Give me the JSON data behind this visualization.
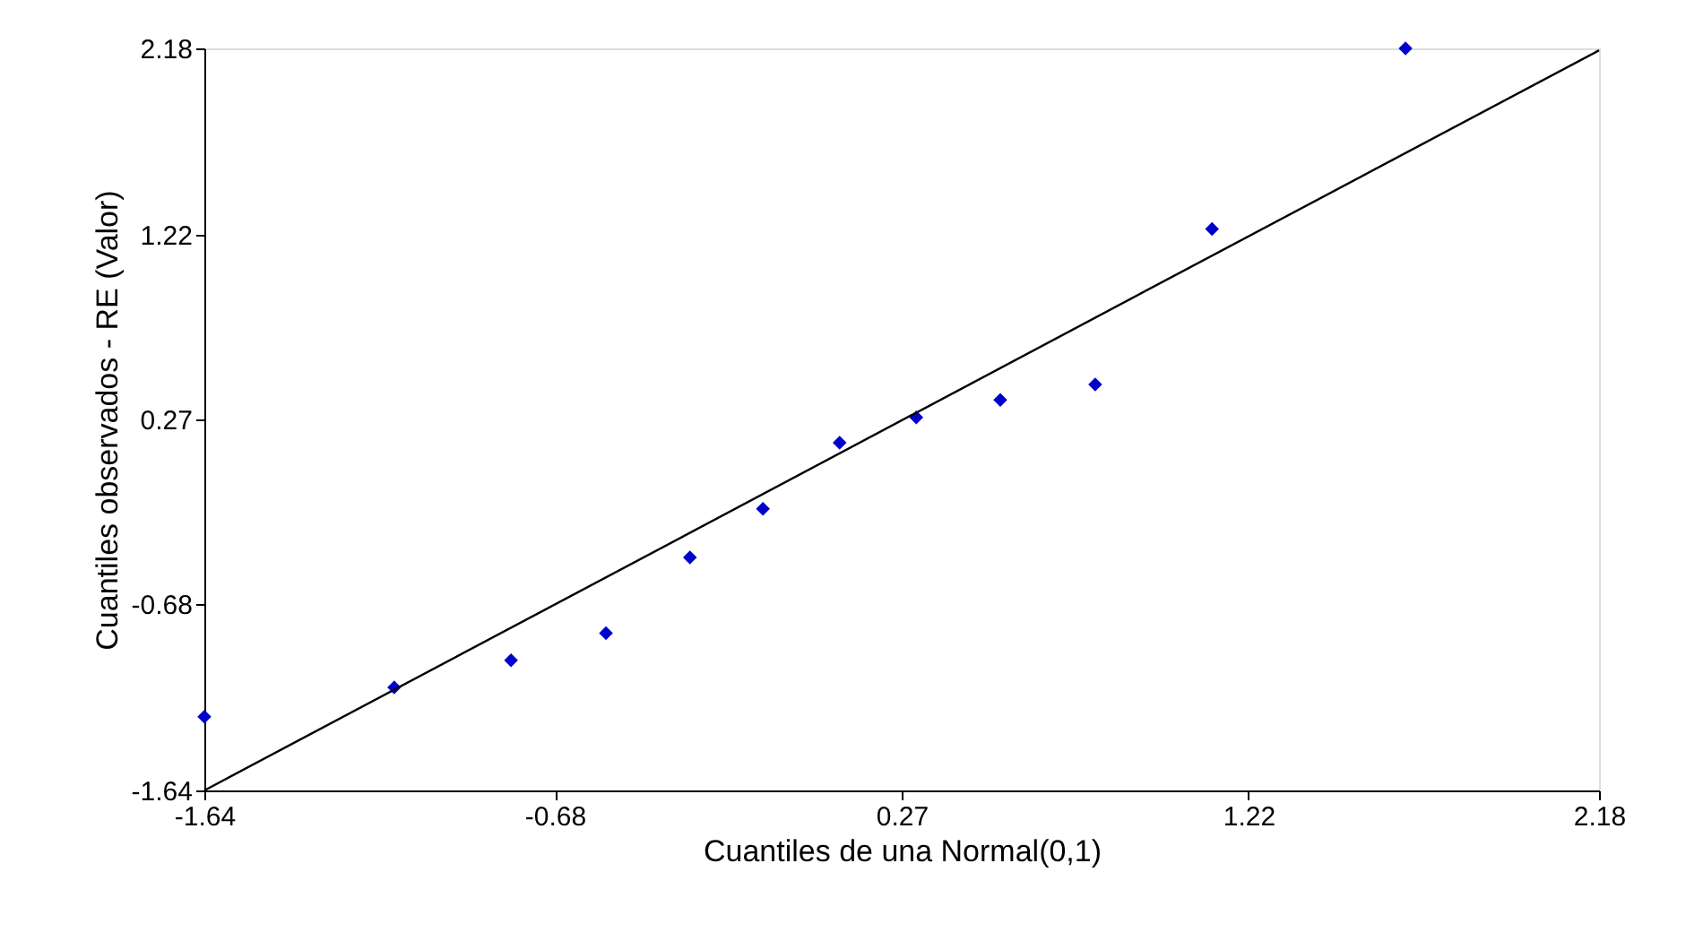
{
  "chart_data": {
    "type": "scatter",
    "xlabel": "Cuantiles de una Normal(0,1)",
    "ylabel": "Cuantiles observados - RE (Valor)",
    "xlim": [
      -1.64,
      2.18
    ],
    "ylim": [
      -1.64,
      2.18
    ],
    "xticks": [
      -1.64,
      -0.68,
      0.27,
      1.22,
      2.18
    ],
    "yticks": [
      -1.64,
      -0.68,
      0.27,
      1.22,
      2.18
    ],
    "grid": false,
    "legend": false,
    "series": [
      {
        "color": "#0000cc",
        "marker": "diamond",
        "x": [
          -1.64,
          -1.12,
          -0.8,
          -0.54,
          -0.31,
          -0.11,
          0.1,
          0.31,
          0.54,
          0.8,
          1.12,
          1.65
        ],
        "values": [
          -1.26,
          -1.11,
          -0.97,
          -0.83,
          -0.44,
          -0.19,
          0.15,
          0.28,
          0.37,
          0.45,
          1.25,
          2.18
        ]
      },
      {
        "type": "line",
        "color": "#000000",
        "line_style": "solid",
        "x": [
          -1.64,
          2.18
        ],
        "values": [
          -1.64,
          2.17
        ]
      }
    ]
  }
}
